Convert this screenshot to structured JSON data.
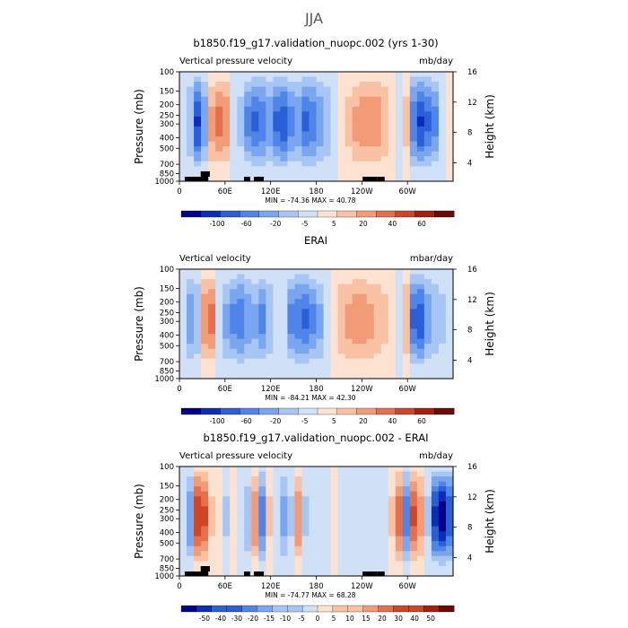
{
  "figure_title": "JJA",
  "colors": {
    "scale": [
      "#00008b",
      "#0b2db8",
      "#2b5fd6",
      "#4f85e8",
      "#7aa6ef",
      "#a8c6f4",
      "#cfe0f7",
      "#fde2d2",
      "#f9c2a4",
      "#f19b77",
      "#e4704d",
      "#cf4626",
      "#a81e0e",
      "#6e0a05"
    ],
    "land": "#000000"
  },
  "chart_data": [
    {
      "type": "heatmap",
      "title": "b1850.f19_g17.validation_nuopc.002 (yrs 1-30)",
      "variable": "Vertical pressure velocity",
      "units": "mb/day",
      "xlabel": "",
      "ylabel": "Pressure (mb)",
      "ylabel_right": "Height (km)",
      "x_ticks": [
        "0",
        "60E",
        "120E",
        "180",
        "120W",
        "60W"
      ],
      "y_ticks": [
        "100",
        "150",
        "200",
        "250",
        "300",
        "400",
        "500",
        "700",
        "850",
        "1000"
      ],
      "y_ticks_right": [
        "16",
        "12",
        "8",
        "4"
      ],
      "stats": "MIN = -74.36   MAX =  40.78",
      "colorbar_labels": [
        "-100",
        "-60",
        "-20",
        "-5",
        "5",
        "20",
        "40",
        "60"
      ],
      "zonal_profile": [
        -8,
        -20,
        -55,
        -30,
        25,
        35,
        30,
        -10,
        -15,
        -35,
        -45,
        -40,
        -30,
        -45,
        -50,
        -35,
        -30,
        -45,
        -40,
        -30,
        -20,
        -5,
        3,
        15,
        25,
        30,
        30,
        28,
        20,
        8,
        -10,
        15,
        -40,
        -55,
        -45,
        -35,
        -10,
        3
      ]
    },
    {
      "type": "heatmap",
      "title": "ERAI",
      "variable": "Vertical velocity",
      "units": "mbar/day",
      "xlabel": "",
      "ylabel": "Pressure (mb)",
      "ylabel_right": "Height (km)",
      "x_ticks": [
        "0",
        "60E",
        "120E",
        "180",
        "120W",
        "60W"
      ],
      "y_ticks": [
        "100",
        "150",
        "200",
        "250",
        "300",
        "400",
        "500",
        "700",
        "850",
        "1000"
      ],
      "y_ticks_right": [
        "16",
        "12",
        "8",
        "4"
      ],
      "stats": "MIN = -84.21   MAX =  42.30",
      "colorbar_labels": [
        "-100",
        "-60",
        "-20",
        "-5",
        "5",
        "20",
        "40",
        "60"
      ],
      "zonal_profile": [
        -10,
        -30,
        -20,
        30,
        35,
        -10,
        -25,
        -35,
        -40,
        -30,
        -25,
        -35,
        -20,
        -5,
        -10,
        -35,
        -40,
        -45,
        -35,
        -25,
        -10,
        10,
        20,
        25,
        30,
        30,
        25,
        20,
        15,
        5,
        -5,
        20,
        -45,
        -50,
        -30,
        -20,
        -15,
        -5
      ]
    },
    {
      "type": "heatmap",
      "title": "b1850.f19_g17.validation_nuopc.002 - ERAI",
      "variable": "Vertical pressure velocity",
      "units": "mb/day",
      "xlabel": "",
      "ylabel": "Pressure (mb)",
      "ylabel_right": "Height (km)",
      "x_ticks": [
        "0",
        "60E",
        "120E",
        "180",
        "120W",
        "60W"
      ],
      "y_ticks": [
        "100",
        "150",
        "200",
        "250",
        "300",
        "400",
        "500",
        "700",
        "850",
        "1000"
      ],
      "y_ticks_right": [
        "16",
        "12",
        "8",
        "4"
      ],
      "stats": "MIN = -74.77   MAX =  68.28",
      "colorbar_labels": [
        "-50",
        "-40",
        "-30",
        "-20",
        "-15",
        "-10",
        "-5",
        "0",
        "5",
        "10",
        "15",
        "20",
        "30",
        "40",
        "50"
      ],
      "zonal_profile": [
        -5,
        -25,
        40,
        35,
        10,
        5,
        -10,
        5,
        -5,
        -15,
        25,
        -30,
        10,
        -5,
        -20,
        -10,
        25,
        -10,
        -5,
        -5,
        -3,
        0,
        -3,
        -5,
        -3,
        -2,
        -5,
        -3,
        -5,
        10,
        30,
        -30,
        35,
        20,
        -10,
        -45,
        -55,
        -40
      ]
    }
  ]
}
